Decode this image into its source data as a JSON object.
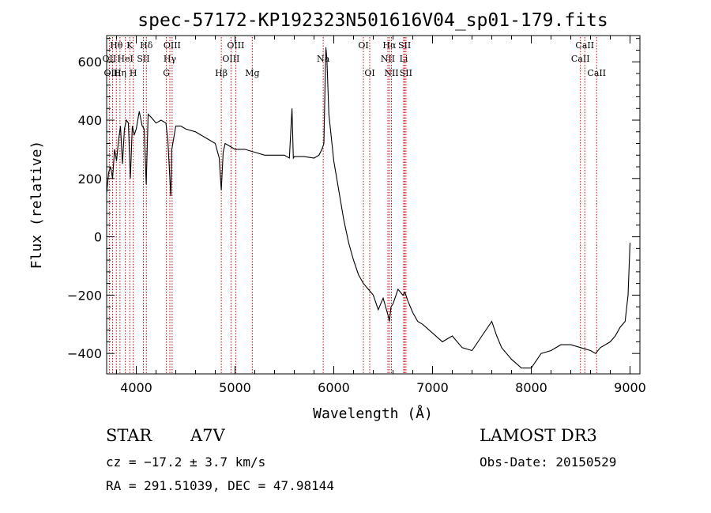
{
  "title": "spec-57172-KP192323N501616V04_sp01-179.fits",
  "chart_data": {
    "type": "line",
    "title": "spec-57172-KP192323N501616V04_sp01-179.fits",
    "xlabel": "Wavelength (Å)",
    "ylabel": "Flux (relative)",
    "xlim": [
      3700,
      9100
    ],
    "ylim": [
      -470,
      690
    ],
    "xticks": [
      4000,
      5000,
      6000,
      7000,
      8000,
      9000
    ],
    "yticks": [
      -400,
      -200,
      0,
      200,
      400,
      600
    ],
    "series": [
      {
        "x": [
          3700,
          3720,
          3740,
          3760,
          3780,
          3800,
          3820,
          3840,
          3860,
          3880,
          3900,
          3920,
          3940,
          3960,
          3980,
          4000,
          4030,
          4060,
          4080,
          4101,
          4120,
          4150,
          4200,
          4250,
          4300,
          4320,
          4340,
          4350,
          4360,
          4400,
          4450,
          4500,
          4600,
          4700,
          4800,
          4840,
          4861,
          4880,
          4900,
          5000,
          5100,
          5200,
          5300,
          5400,
          5500,
          5550,
          5577,
          5590,
          5600,
          5700,
          5800,
          5850,
          5880,
          5900,
          5910,
          5920,
          5930,
          5950,
          6000,
          6050,
          6100,
          6150,
          6200,
          6250,
          6300,
          6350,
          6400,
          6450,
          6500,
          6550,
          6563,
          6580,
          6600,
          6650,
          6700,
          6720,
          6750,
          6800,
          6850,
          6900,
          7000,
          7100,
          7200,
          7300,
          7400,
          7500,
          7600,
          7650,
          7700,
          7800,
          7900,
          8000,
          8100,
          8200,
          8300,
          8400,
          8500,
          8600,
          8650,
          8700,
          8800,
          8850,
          8900,
          8950,
          8980,
          9000
        ],
        "y": [
          150,
          220,
          240,
          200,
          300,
          260,
          330,
          380,
          250,
          370,
          400,
          390,
          200,
          380,
          350,
          370,
          430,
          380,
          370,
          180,
          420,
          410,
          390,
          400,
          390,
          330,
          200,
          140,
          300,
          380,
          380,
          370,
          360,
          340,
          320,
          270,
          160,
          290,
          320,
          300,
          300,
          290,
          280,
          280,
          280,
          270,
          440,
          270,
          275,
          275,
          270,
          280,
          300,
          320,
          500,
          650,
          610,
          420,
          260,
          160,
          60,
          -20,
          -80,
          -130,
          -160,
          -180,
          -200,
          -250,
          -210,
          -270,
          -290,
          -240,
          -230,
          -180,
          -200,
          -190,
          -220,
          -260,
          -290,
          -300,
          -330,
          -360,
          -340,
          -380,
          -390,
          -340,
          -290,
          -340,
          -380,
          -420,
          -450,
          -450,
          -400,
          -390,
          -370,
          -370,
          -380,
          -390,
          -400,
          -380,
          -360,
          -340,
          -310,
          -290,
          -200,
          -20
        ]
      }
    ],
    "lines": [
      {
        "label": "Hθ",
        "x": 3798,
        "row": 1
      },
      {
        "label": "OII",
        "x": 3727,
        "row": 2
      },
      {
        "label": "OIII",
        "x": 3760,
        "row": 3
      },
      {
        "label": "Hη",
        "x": 3835,
        "row": 3
      },
      {
        "label": "HeI",
        "x": 3889,
        "row": 2
      },
      {
        "label": "K",
        "x": 3934,
        "row": 1
      },
      {
        "label": "H",
        "x": 3969,
        "row": 3
      },
      {
        "label": "SII",
        "x": 4072,
        "row": 2
      },
      {
        "label": "Hδ",
        "x": 4102,
        "row": 1
      },
      {
        "label": "Hγ",
        "x": 4340,
        "row": 2
      },
      {
        "label": "G",
        "x": 4305,
        "row": 3
      },
      {
        "label": "OIII",
        "x": 4363,
        "row": 1
      },
      {
        "label": "Hβ",
        "x": 4861,
        "row": 3
      },
      {
        "label": "OIII",
        "x": 4959,
        "row": 2
      },
      {
        "label": "OIII",
        "x": 5007,
        "row": 1
      },
      {
        "label": "Mg",
        "x": 5175,
        "row": 3
      },
      {
        "label": "Na",
        "x": 5893,
        "row": 2
      },
      {
        "label": "OI",
        "x": 6300,
        "row": 1
      },
      {
        "label": "OI",
        "x": 6364,
        "row": 3
      },
      {
        "label": "NII",
        "x": 6548,
        "row": 2
      },
      {
        "label": "Hα",
        "x": 6563,
        "row": 1
      },
      {
        "label": "NII",
        "x": 6584,
        "row": 3
      },
      {
        "label": "SII",
        "x": 6717,
        "row": 1
      },
      {
        "label": "Li",
        "x": 6708,
        "row": 2
      },
      {
        "label": "SII",
        "x": 6731,
        "row": 3
      },
      {
        "label": "CaII",
        "x": 8498,
        "row": 2
      },
      {
        "label": "CaII",
        "x": 8542,
        "row": 1
      },
      {
        "label": "CaII",
        "x": 8662,
        "row": 3
      }
    ]
  },
  "info": {
    "class": "STAR",
    "subclass": "A7V",
    "survey": "LAMOST DR3",
    "cz": "cz = −17.2 ± 3.7 km/s",
    "obsdate": "Obs-Date: 20150529",
    "radec": "RA = 291.51039, DEC =  47.98144"
  }
}
